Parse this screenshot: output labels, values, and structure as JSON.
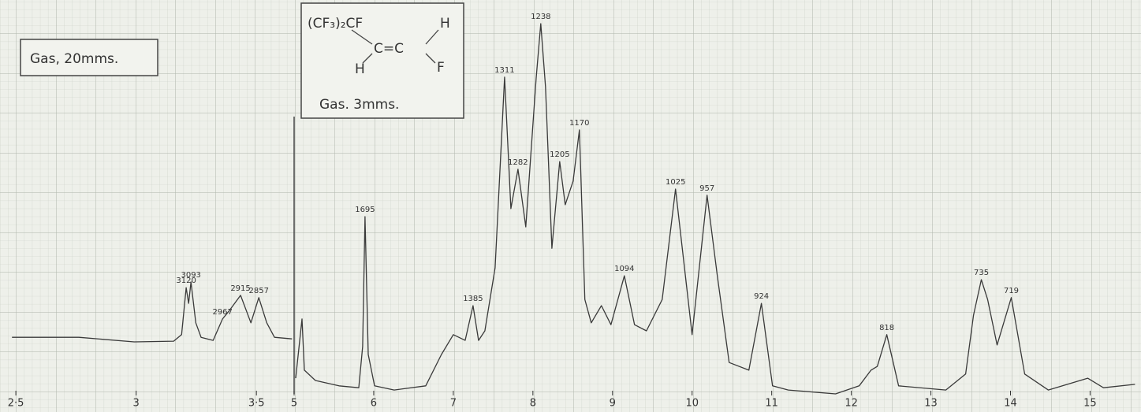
{
  "chart_data": [
    {
      "type": "line",
      "sample_note": "Gas, 20mms.",
      "color": "#3a3a3a",
      "x": [
        2.484,
        2.762,
        2.992,
        3.156,
        3.189,
        3.208,
        3.218,
        3.228,
        3.248,
        3.27,
        3.32,
        3.359,
        3.385,
        3.434,
        3.477,
        3.51,
        3.543,
        3.575,
        3.648
      ],
      "values": [
        14.8,
        14.8,
        13.6,
        13.8,
        15.5,
        27.8,
        23.7,
        29.3,
        18.6,
        14.8,
        14.0,
        19.6,
        21.6,
        25.8,
        18.6,
        25.2,
        18.6,
        14.8,
        14.4
      ],
      "xlim": [
        2.48,
        3.66
      ],
      "ylim": [
        0,
        100
      ],
      "xticks": [
        {
          "value": 2.5,
          "label": "2·5"
        },
        3,
        {
          "value": 3.5,
          "label": "3·5"
        }
      ],
      "annotations": [
        {
          "x": 3.208,
          "y": 27.8,
          "text": "3120"
        },
        {
          "x": 3.228,
          "y": 29.3,
          "text": "3093"
        },
        {
          "x": 3.359,
          "y": 19.6,
          "text": "2967"
        },
        {
          "x": 3.434,
          "y": 25.8,
          "text": "2915"
        },
        {
          "x": 3.51,
          "y": 25.2,
          "text": "2857"
        }
      ]
    },
    {
      "type": "line",
      "sample_note": "Gas. 3mms.",
      "color": "#3a3a3a",
      "structure": {
        "group": "(CF₃)₂CF",
        "bond": "C=C",
        "h_left": "H",
        "h_right": "H",
        "f": "F"
      },
      "x": [
        5.02,
        5.099,
        5.129,
        5.267,
        5.564,
        5.812,
        5.861,
        5.891,
        5.931,
        6.01,
        6.257,
        6.653,
        6.851,
        7.0,
        7.149,
        7.248,
        7.317,
        7.396,
        7.525,
        7.644,
        7.723,
        7.812,
        7.911,
        8.04,
        8.099,
        8.158,
        8.238,
        8.337,
        8.406,
        8.505,
        8.584,
        8.653,
        8.733,
        8.861,
        8.98,
        9.149,
        9.277,
        9.426,
        9.624,
        9.792,
        10.0,
        10.188,
        10.317,
        10.465,
        10.713,
        10.871,
        11.01,
        11.208,
        11.802,
        12.099,
        12.248,
        12.327,
        12.446,
        12.594,
        13.188,
        13.436,
        13.535,
        13.634,
        13.713,
        13.832,
        14.01,
        14.178,
        14.475,
        14.97,
        15.168,
        15.564
      ],
      "values": [
        4.1,
        19.6,
        6.2,
        3.5,
        2.1,
        1.6,
        12.4,
        46.4,
        10.3,
        2.1,
        1.0,
        2.1,
        10.3,
        15.5,
        14.0,
        23.1,
        14.0,
        16.5,
        33.0,
        82.9,
        48.5,
        58.8,
        43.7,
        82.5,
        96.9,
        80.4,
        38.1,
        60.8,
        49.5,
        55.7,
        69.1,
        24.7,
        18.6,
        23.1,
        18.1,
        30.9,
        18.1,
        16.5,
        24.7,
        53.6,
        15.5,
        52.0,
        30.9,
        8.2,
        6.2,
        23.7,
        2.1,
        1.0,
        0,
        2.1,
        6.2,
        7.2,
        15.5,
        2.1,
        1.0,
        5.2,
        20.6,
        29.9,
        24.7,
        12.8,
        25.2,
        5.2,
        1.0,
        4.1,
        1.6,
        2.5
      ],
      "xlim": [
        5,
        15.6
      ],
      "ylim": [
        0,
        100
      ],
      "xticks": [
        5,
        6,
        7,
        8,
        9,
        10,
        11,
        12,
        13,
        14,
        15
      ],
      "annotations": [
        {
          "x": 5.891,
          "y": 46.4,
          "text": "1695"
        },
        {
          "x": 7.248,
          "y": 23.1,
          "text": "1385"
        },
        {
          "x": 7.644,
          "y": 82.9,
          "text": "1311"
        },
        {
          "x": 7.812,
          "y": 58.8,
          "text": "1282"
        },
        {
          "x": 8.099,
          "y": 96.9,
          "text": "1238"
        },
        {
          "x": 8.337,
          "y": 60.8,
          "text": "1205"
        },
        {
          "x": 8.584,
          "y": 69.1,
          "text": "1170"
        },
        {
          "x": 9.149,
          "y": 30.9,
          "text": "1094"
        },
        {
          "x": 9.792,
          "y": 53.6,
          "text": "1025"
        },
        {
          "x": 10.188,
          "y": 52.0,
          "text": "957"
        },
        {
          "x": 10.871,
          "y": 23.7,
          "text": "924"
        },
        {
          "x": 12.446,
          "y": 15.5,
          "text": "818"
        },
        {
          "x": 13.634,
          "y": 29.9,
          "text": "735"
        },
        {
          "x": 14.01,
          "y": 25.2,
          "text": "719"
        }
      ]
    }
  ]
}
